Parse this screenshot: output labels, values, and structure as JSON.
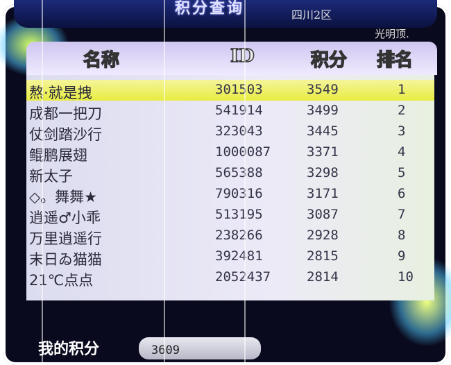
{
  "title": "积分查询",
  "server": "四川2区",
  "map": "光明顶.",
  "columns": {
    "name": "名称",
    "id": "ID",
    "score": "积分",
    "rank": "排名"
  },
  "rows": [
    {
      "name": "熬·就是拽",
      "id": "301503",
      "score": "3549",
      "rank": "1",
      "highlighted": true
    },
    {
      "name": "成都一把刀",
      "id": "541914",
      "score": "3499",
      "rank": "2"
    },
    {
      "name": "仗剑踏沙行",
      "id": "323043",
      "score": "3445",
      "rank": "3"
    },
    {
      "name": "鲲鹏展翅",
      "id": "1000087",
      "score": "3371",
      "rank": "4"
    },
    {
      "name": "新太子",
      "id": "565388",
      "score": "3298",
      "rank": "5"
    },
    {
      "name": "◇。舞舞★",
      "id": "790316",
      "score": "3171",
      "rank": "6"
    },
    {
      "name": "逍遥♂小乖",
      "id": "513195",
      "score": "3087",
      "rank": "7"
    },
    {
      "name": "万里逍遥行",
      "id": "238266",
      "score": "2928",
      "rank": "8"
    },
    {
      "name": "末日ゐ猫猫",
      "id": "392481",
      "score": "2815",
      "rank": "9"
    },
    {
      "name": "21℃点点",
      "id": "2052437",
      "score": "2814",
      "rank": "10"
    }
  ],
  "my_score": {
    "label": "我的积分",
    "value": "3609"
  },
  "colors": {
    "highlight": "#e8ec40",
    "panel": "#e4e2f3",
    "frame": "#0a0a1e"
  }
}
